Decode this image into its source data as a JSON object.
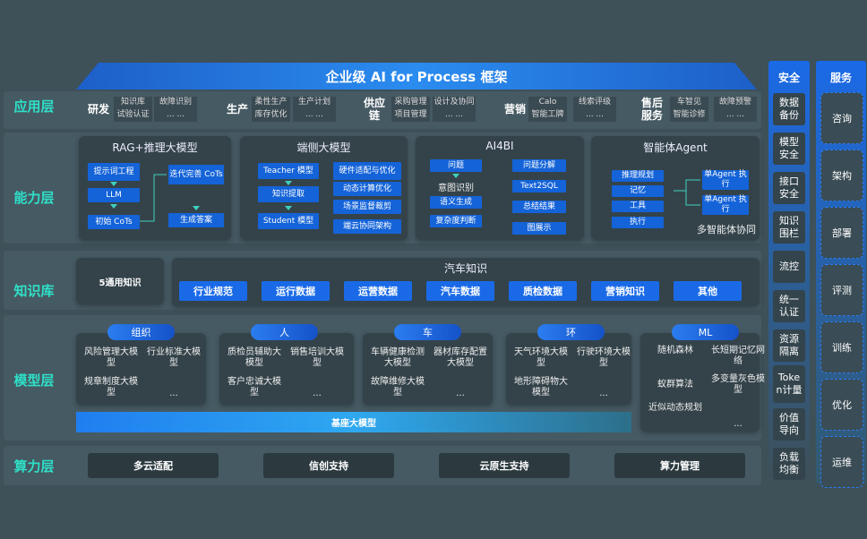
{
  "title": "企业级 AI for Process 框架",
  "layers": {
    "app": "应用层",
    "capability": "能力层",
    "knowledge": "知识库",
    "model": "模型层",
    "compute": "算力层"
  },
  "app_groups": [
    {
      "name": "研发",
      "items": [
        "知识库",
        "试验认证",
        "故障识别",
        "... ..."
      ]
    },
    {
      "name": "生产",
      "items": [
        "柔性生产",
        "库存优化",
        "生产计划",
        "... ..."
      ]
    },
    {
      "name": "供应链",
      "items": [
        "采购管理",
        "项目管理",
        "设计及协同",
        "... ..."
      ]
    },
    {
      "name": "营销",
      "items": [
        "Calo",
        "智能工牌",
        "线索评级",
        "... ..."
      ]
    },
    {
      "name": "售后服务",
      "items": [
        "车智见",
        "智能诊修",
        "故障预警",
        "... ..."
      ]
    }
  ],
  "capability": {
    "rag": {
      "title": "RAG+推理大模型",
      "items": [
        "提示词工程",
        "LLM",
        "初始 CoTs",
        "迭代完善 CoTs",
        "生成答案"
      ]
    },
    "edge": {
      "title": "端侧大模型",
      "items": [
        "Teacher 模型",
        "知识提取",
        "Student 模型",
        "硬件适配与优化",
        "动态计算优化",
        "场景监督裁剪",
        "端云协同架构"
      ]
    },
    "ai4bi": {
      "title": "AI4BI",
      "items": [
        "问题",
        "意图识别",
        "语义生成",
        "复杂度判断",
        "问题分解",
        "Text2SQL",
        "总结结果",
        "图展示"
      ]
    },
    "agent": {
      "title": "智能体Agent",
      "items": [
        "推理规划",
        "记忆",
        "工具",
        "执行",
        "单Agent 执行",
        "单Agent 执行"
      ],
      "footer": "多智能体协同"
    }
  },
  "knowledge": {
    "general": "5通用知识",
    "auto_title": "汽车知识",
    "auto_items": [
      "行业规范",
      "运行数据",
      "运营数据",
      "汽车数据",
      "质检数据",
      "营销知识",
      "其他"
    ]
  },
  "model_groups": [
    {
      "name": "组织",
      "items": [
        "风险管理大模型",
        "行业标准大模型",
        "规章制度大模型",
        "..."
      ]
    },
    {
      "name": "人",
      "items": [
        "质检员辅助大模型",
        "销售培训大模型",
        "客户忠诚大模型",
        "..."
      ]
    },
    {
      "name": "车",
      "items": [
        "车辆健康检测大模型",
        "器材库存配置大模型",
        "故障维修大模型",
        "..."
      ]
    },
    {
      "name": "环",
      "items": [
        "天气环境大模型",
        "行驶环境大模型",
        "地形障碍物大模型",
        "..."
      ]
    },
    {
      "name": "ML",
      "items": [
        "随机森林",
        "长短期记忆网络",
        "蚁群算法",
        "多变量灰色模型",
        "近似动态规划",
        "..."
      ]
    }
  ],
  "base_model": "基座大模型",
  "compute": [
    "多云适配",
    "信创支持",
    "云原生支持",
    "算力管理"
  ],
  "security": {
    "title": "安全",
    "items": [
      "数据备份",
      "模型安全",
      "接口安全",
      "知识围栏",
      "流控",
      "统一认证",
      "资源隔离",
      "Token计量",
      "价值导向",
      "负载均衡"
    ]
  },
  "services": {
    "title": "服务",
    "items": [
      "咨询",
      "架构",
      "部署",
      "评测",
      "训练",
      "优化",
      "运维"
    ]
  },
  "colors": {
    "background": "#3e5058",
    "accent": "#1a6ae8",
    "layer_label": "#2ee0c8"
  }
}
